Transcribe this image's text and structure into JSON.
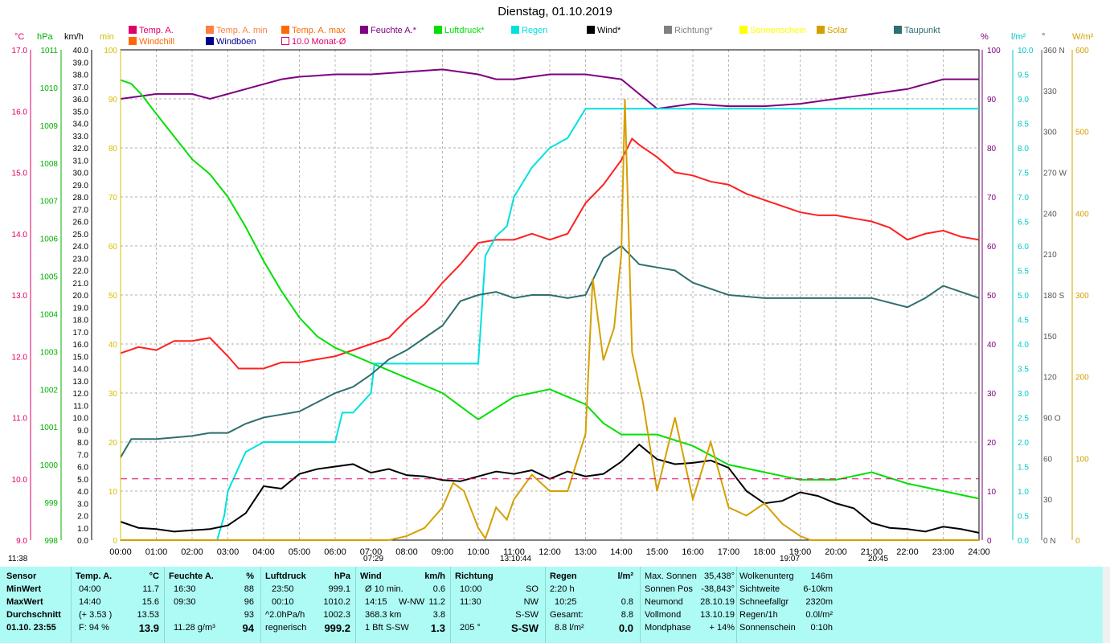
{
  "title": "Dienstag, 01.10.2019",
  "legend": [
    {
      "label": "Temp. A.",
      "color": "#e0006a"
    },
    {
      "label": "Temp. A. min",
      "color": "#ff7f40"
    },
    {
      "label": "Temp. A. max",
      "color": "#ff6a00"
    },
    {
      "label": "Feuchte A.*",
      "color": "#7f0080"
    },
    {
      "label": "Luftdruck*",
      "color": "#00e000"
    },
    {
      "label": "Regen",
      "color": "#00e0e0"
    },
    {
      "label": "Wind*",
      "color": "#000000"
    },
    {
      "label": "Richtung*",
      "color": "#808080"
    },
    {
      "label": "Sonnenschein",
      "color": "#ffff00"
    },
    {
      "label": "Solar",
      "color": "#d4a000"
    },
    {
      "label": "Taupunkt",
      "color": "#2f6f6f"
    },
    {
      "label": "Windchill",
      "color": "#ff6a00"
    },
    {
      "label": "Windböen",
      "color": "#00008b"
    },
    {
      "label": "10.0 Monat-Ø",
      "color": "#e0006a"
    }
  ],
  "units": {
    "temp": "°C",
    "hpa": "hPa",
    "kmh": "km/h",
    "min": "min",
    "pct": "%",
    "rain": "l/m²",
    "deg": "°",
    "wm2": "W/m²"
  },
  "axis_labels": {
    "temp": [
      "17.0",
      "16.0",
      "15.0",
      "14.0",
      "13.0",
      "12.0",
      "11.0",
      "10.0",
      "9.0"
    ],
    "hpa": [
      "1011",
      "1010",
      "1009",
      "1008",
      "1007",
      "1006",
      "1005",
      "1004",
      "1003",
      "1002",
      "1001",
      "1000",
      "999",
      "998"
    ],
    "kmh": [
      "40.0",
      "39.0",
      "38.0",
      "37.0",
      "36.0",
      "35.0",
      "34.0",
      "33.0",
      "32.0",
      "31.0",
      "30.0",
      "29.0",
      "28.0",
      "27.0",
      "26.0",
      "25.0",
      "24.0",
      "23.0",
      "22.0",
      "21.0",
      "20.0",
      "19.0",
      "18.0",
      "17.0",
      "16.0",
      "15.0",
      "14.0",
      "13.0",
      "12.0",
      "11.0",
      "10.0",
      "9.0",
      "8.0",
      "7.0",
      "6.0",
      "5.0",
      "4.0",
      "3.0",
      "2.0",
      "1.0",
      "0.0"
    ],
    "min": [
      "100",
      "90",
      "80",
      "70",
      "60",
      "50",
      "40",
      "30",
      "20",
      "10",
      "0"
    ],
    "pct": [
      "100",
      "90",
      "80",
      "70",
      "60",
      "50",
      "40",
      "30",
      "20",
      "10",
      "0"
    ],
    "rain": [
      "10.0",
      "9.5",
      "9.0",
      "8.5",
      "8.0",
      "7.5",
      "7.0",
      "6.5",
      "6.0",
      "5.5",
      "5.0",
      "4.5",
      "4.0",
      "3.5",
      "3.0",
      "2.5",
      "2.0",
      "1.5",
      "1.0",
      "0.5",
      "0.0"
    ],
    "deg": [
      "360 N",
      "330",
      "300",
      "270 W",
      "240",
      "210",
      "180 S",
      "150",
      "120",
      "90 O",
      "60",
      "30",
      "0 N"
    ],
    "wm2": [
      "600",
      "500",
      "400",
      "300",
      "200",
      "100",
      "0"
    ]
  },
  "markers": {
    "left": "11:38",
    "sunrise": "07:29",
    "noon": "13:10:44",
    "sunset": "19:07",
    "moon": "20:45"
  },
  "chart_data": {
    "type": "line",
    "x_label": "hours",
    "x_ticks": [
      "00:00",
      "01:00",
      "02:00",
      "03:00",
      "04:00",
      "05:00",
      "06:00",
      "07:00",
      "08:00",
      "09:00",
      "10:00",
      "11:00",
      "12:00",
      "13:00",
      "14:00",
      "15:00",
      "16:00",
      "17:00",
      "18:00",
      "19:00",
      "20:00",
      "21:00",
      "22:00",
      "23:00",
      "24:00"
    ],
    "series": [
      {
        "name": "Temp. A.",
        "axis": "temp",
        "color": "#ff2020",
        "x": [
          0,
          0.5,
          1,
          1.5,
          2,
          2.5,
          3,
          3.3,
          4,
          4.5,
          5,
          6,
          7,
          7.5,
          8,
          8.5,
          9,
          9.5,
          10,
          10.5,
          11,
          11.5,
          12,
          12.5,
          13,
          13.5,
          14,
          14.3,
          14.5,
          15,
          15.5,
          16,
          16.5,
          17,
          17.5,
          18,
          18.5,
          19,
          19.5,
          20,
          20.5,
          21,
          21.5,
          22,
          22.5,
          23,
          23.5,
          24
        ],
        "y": [
          12.05,
          12.15,
          12.1,
          12.25,
          12.25,
          12.3,
          12.0,
          11.8,
          11.8,
          11.9,
          11.9,
          12.0,
          12.2,
          12.3,
          12.6,
          12.85,
          13.2,
          13.5,
          13.85,
          13.9,
          13.9,
          14.0,
          13.9,
          14.0,
          14.5,
          14.8,
          15.2,
          15.55,
          15.45,
          15.25,
          15.0,
          14.95,
          14.85,
          14.8,
          14.65,
          14.55,
          14.45,
          14.35,
          14.3,
          14.3,
          14.25,
          14.2,
          14.1,
          13.9,
          14.0,
          14.05,
          13.95,
          13.9
        ]
      },
      {
        "name": "Feuchte A.*",
        "axis": "pct",
        "color": "#7f0080",
        "x": [
          0,
          0.5,
          1,
          1.5,
          2,
          2.5,
          3,
          3.5,
          4,
          4.5,
          5,
          6,
          7,
          8,
          9,
          10,
          10.5,
          11,
          12,
          13,
          14,
          14.5,
          15,
          16,
          17,
          18,
          19,
          20,
          21,
          22,
          22.5,
          23,
          24
        ],
        "y": [
          90,
          90.5,
          91,
          91,
          91,
          90,
          91,
          92,
          93,
          94,
          94.5,
          95,
          95,
          95.5,
          96,
          95,
          94,
          94,
          95,
          95,
          94,
          91,
          88,
          89,
          88.5,
          88.5,
          89,
          90,
          91,
          92,
          93,
          94,
          94
        ]
      },
      {
        "name": "Luftdruck*",
        "axis": "hpa",
        "color": "#00e000",
        "x": [
          0,
          0.3,
          0.6,
          1,
          1.5,
          2,
          2.5,
          3,
          3.5,
          4,
          4.5,
          5,
          5.5,
          6,
          7,
          8,
          9,
          10,
          11,
          12,
          13,
          13.5,
          14,
          15,
          16,
          17,
          18,
          19,
          20,
          21,
          22,
          23,
          24
        ],
        "y": [
          1010.2,
          1010.1,
          1009.8,
          1009.3,
          1008.7,
          1008.1,
          1007.7,
          1007.1,
          1006.3,
          1005.4,
          1004.6,
          1003.9,
          1003.4,
          1003.1,
          1002.7,
          1002.3,
          1001.9,
          1001.2,
          1001.8,
          1002.0,
          1001.6,
          1001.1,
          1000.8,
          1000.8,
          1000.5,
          1000.0,
          999.8,
          999.6,
          999.6,
          999.8,
          999.5,
          999.3,
          999.1
        ]
      },
      {
        "name": "Regen",
        "axis": "rain",
        "color": "#00e0e0",
        "x": [
          0,
          2.7,
          2.9,
          3.0,
          3.5,
          4.0,
          4.5,
          5.0,
          5.5,
          6.0,
          6.2,
          6.5,
          7.0,
          7.1,
          7.5,
          8.0,
          8.5,
          9.0,
          9.5,
          10.0,
          10.2,
          10.5,
          10.8,
          11.0,
          11.5,
          12.0,
          12.5,
          13.0,
          13.5,
          14,
          15,
          16,
          17,
          18,
          19,
          20,
          21,
          22,
          23,
          24
        ],
        "y": [
          0,
          0,
          0.5,
          1.0,
          1.8,
          2.0,
          2.0,
          2.0,
          2.0,
          2.0,
          2.6,
          2.6,
          3.0,
          3.6,
          3.6,
          3.6,
          3.6,
          3.6,
          3.6,
          3.6,
          5.8,
          6.2,
          6.4,
          7.0,
          7.6,
          8.0,
          8.2,
          8.8,
          8.8,
          8.8,
          8.8,
          8.8,
          8.8,
          8.8,
          8.8,
          8.8,
          8.8,
          8.8,
          8.8,
          8.8
        ]
      },
      {
        "name": "Wind*",
        "axis": "kmh",
        "color": "#000000",
        "x": [
          0,
          0.5,
          1,
          1.5,
          2,
          2.5,
          3,
          3.5,
          4,
          4.5,
          5,
          5.5,
          6,
          6.5,
          7,
          7.5,
          8,
          8.5,
          9,
          9.5,
          10,
          10.5,
          11,
          11.5,
          12,
          12.5,
          13,
          13.5,
          14,
          14.5,
          15,
          15.5,
          16,
          16.5,
          17,
          17.5,
          18,
          18.5,
          19,
          19.5,
          20,
          20.5,
          21,
          21.5,
          22,
          22.5,
          23,
          23.5,
          24
        ],
        "y": [
          1.5,
          1.0,
          0.9,
          0.7,
          0.8,
          0.9,
          1.2,
          2.2,
          4.4,
          4.2,
          5.4,
          5.8,
          6.0,
          6.2,
          5.5,
          5.8,
          5.3,
          5.2,
          4.9,
          4.8,
          5.2,
          5.6,
          5.4,
          5.7,
          5.0,
          5.6,
          5.2,
          5.4,
          6.4,
          7.8,
          6.6,
          6.2,
          6.3,
          6.5,
          5.9,
          4.0,
          3.0,
          3.2,
          3.9,
          3.6,
          3.0,
          2.6,
          1.4,
          1.0,
          0.9,
          0.7,
          1.1,
          0.9,
          0.6
        ]
      },
      {
        "name": "Taupunkt",
        "axis": "temp",
        "color": "#2f6f6f",
        "x": [
          0,
          0.3,
          1,
          2,
          2.5,
          3,
          3.5,
          4,
          4.5,
          5,
          6,
          6.5,
          7,
          7.5,
          8,
          8.5,
          9,
          9.5,
          10,
          10.5,
          11,
          11.5,
          12,
          12.5,
          13,
          13.5,
          14,
          14.5,
          15,
          15.5,
          16,
          17,
          18,
          19,
          20,
          21,
          22,
          22.5,
          23,
          24
        ],
        "y": [
          10.35,
          10.65,
          10.65,
          10.7,
          10.75,
          10.75,
          10.9,
          11.0,
          11.05,
          11.1,
          11.4,
          11.5,
          11.7,
          11.95,
          12.1,
          12.3,
          12.5,
          12.9,
          13.0,
          13.05,
          12.95,
          13.0,
          13.0,
          12.95,
          13.0,
          13.6,
          13.8,
          13.5,
          13.45,
          13.4,
          13.2,
          13.0,
          12.95,
          12.95,
          12.95,
          12.95,
          12.8,
          12.95,
          13.15,
          12.95
        ]
      },
      {
        "name": "Solar",
        "axis": "wm2",
        "color": "#d4a000",
        "x": [
          0,
          7.5,
          8,
          8.5,
          9,
          9.3,
          9.6,
          10,
          10.2,
          10.5,
          10.8,
          11,
          11.5,
          12,
          12.5,
          13,
          13.2,
          13.5,
          13.8,
          14,
          14.1,
          14.3,
          14.6,
          15,
          15.5,
          16,
          16.5,
          17,
          17.5,
          18,
          18.5,
          19,
          19.3,
          24
        ],
        "y": [
          0,
          0,
          5,
          15,
          40,
          70,
          60,
          15,
          2,
          40,
          25,
          50,
          80,
          60,
          60,
          130,
          320,
          220,
          260,
          350,
          540,
          230,
          170,
          60,
          150,
          50,
          120,
          40,
          30,
          45,
          20,
          5,
          0,
          0
        ]
      },
      {
        "name": "Monat-Ø",
        "axis": "temp",
        "color": "#e0006a",
        "x": [
          0,
          24
        ],
        "y": [
          10.0,
          10.0
        ]
      }
    ]
  },
  "bottom": {
    "sensor": {
      "h": "Sensor",
      "min": "MinWert",
      "max": "MaxWert",
      "avg": "Durchschnitt",
      "now": "01.10. 23:55"
    },
    "temp": {
      "h": "Temp. A.",
      "u": "°C",
      "min_t": "04:00",
      "min_v": "11.7",
      "max_t": "14:40",
      "max_v": "15.6",
      "avg_t": "(+ 3.53 )",
      "avg_v": "13.53",
      "now_t": "F: 94 %",
      "now_v": "13.9"
    },
    "hum": {
      "h": "Feuchte A.",
      "u": "%",
      "min_t": "16:30",
      "min_v": "88",
      "max_t": "09:30",
      "max_v": "96",
      "avg_v": "93",
      "now_t": "11.28 g/m³",
      "now_v": "94"
    },
    "pres": {
      "h": "Luftdruck",
      "u": "hPa",
      "min_t": "23:50",
      "min_v": "999.1",
      "max_t": "00:10",
      "max_v": "1010.2",
      "avg_t": "^2.0hPa/h",
      "avg_v": "1002.3",
      "now_t": "regnerisch",
      "now_v": "999.2"
    },
    "wind": {
      "h": "Wind",
      "u": "km/h",
      "min_t": "Ø 10 min.",
      "min_v": "0.6",
      "max_t": "14:15",
      "max_m": "W-NW",
      "max_v": "11.2",
      "avg_t": "368.3 km",
      "avg_v": "3.8",
      "now_t": "1 Bft",
      "now_m": "S-SW",
      "now_v": "1.3"
    },
    "dir": {
      "h": "Richtung",
      "min_t": "10:00",
      "min_v": "SO",
      "max_t": "11:30",
      "max_v": "NW",
      "avg_v": "S-SW",
      "now_t": "205 °",
      "now_v": "S-SW"
    },
    "rain": {
      "h": "Regen",
      "u": "l/m²",
      "min_t": "2:20 h",
      "max_t": "10:25",
      "max_v": "0.8",
      "avg_t": "Gesamt:",
      "avg_v": "8.8",
      "now_t": "8.8 l/m²",
      "now_v": "0.0"
    },
    "sun": {
      "r1l": "Max. Sonnen",
      "r1v": "35,438°",
      "r2l": "Sonnen Pos",
      "r2v": "-38,843°",
      "r3l": "Neumond",
      "r3v": "28.10.19",
      "r4l": "Vollmond",
      "r4v": "13.10.19",
      "r5l": "Mondphase",
      "r5v": "+ 14%"
    },
    "misc": {
      "r1l": "Wolkenunterg",
      "r1v": "146m",
      "r2l": "Sichtweite",
      "r2v": "6-10km",
      "r3l": "Schneefallgr",
      "r3v": "2320m",
      "r4l": "Regen/1h",
      "r4v": "0.0l/m²",
      "r5l": "Sonnenschein",
      "r5v": "0:10h"
    }
  }
}
